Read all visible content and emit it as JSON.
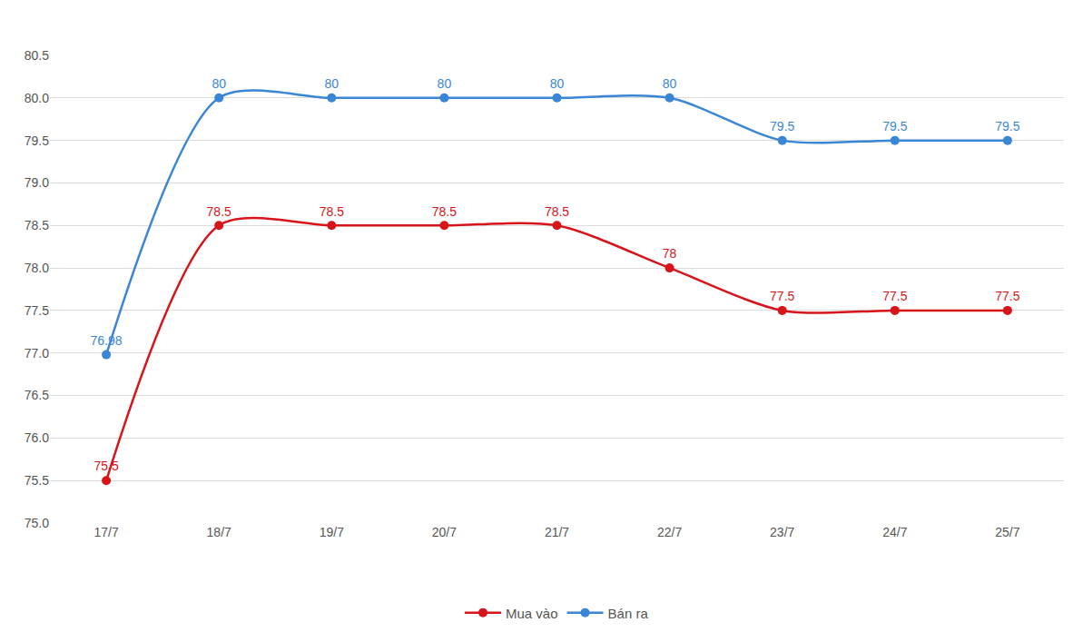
{
  "chart_data": {
    "type": "line",
    "categories": [
      "17/7",
      "18/7",
      "19/7",
      "20/7",
      "21/7",
      "22/7",
      "23/7",
      "24/7",
      "25/7"
    ],
    "series": [
      {
        "name": "Mua vào",
        "color": "#d7141a",
        "values": [
          75.5,
          78.5,
          78.5,
          78.5,
          78.5,
          78,
          77.5,
          77.5,
          77.5
        ]
      },
      {
        "name": "Bán ra",
        "color": "#3a86d6",
        "values": [
          76.98,
          80,
          80,
          80,
          80,
          80,
          79.5,
          79.5,
          79.5
        ]
      }
    ],
    "ylim": [
      75,
      80.5
    ],
    "yticks": [
      {
        "value": 75,
        "label": "75.0"
      },
      75.5,
      {
        "value": 76,
        "label": "76.0"
      },
      76.5,
      {
        "value": 77,
        "label": "77.0"
      },
      77.5,
      {
        "value": 78,
        "label": "78.0"
      },
      78.5,
      {
        "value": 79,
        "label": "79.0"
      },
      79.5,
      {
        "value": 80,
        "label": "80.0"
      },
      80.5
    ],
    "grid": true,
    "legend": "bottom",
    "data_labels": true,
    "line_style": "smooth",
    "marker": "circle"
  }
}
